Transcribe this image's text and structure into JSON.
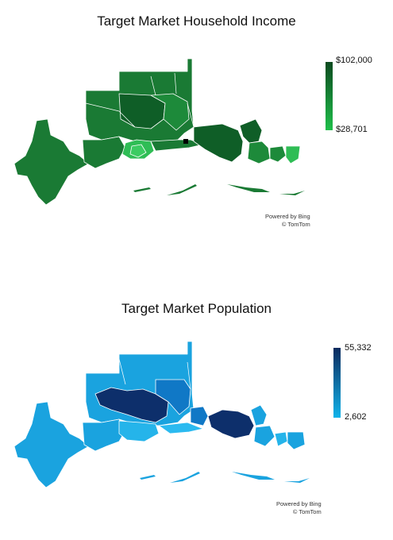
{
  "maps": [
    {
      "title": "Target Market Household Income",
      "legend": {
        "max_label": "$102,000",
        "min_label": "$28,701",
        "color_high": "#0b4a1f",
        "color_low": "#1fbf4a"
      },
      "attribution": {
        "line1": "Powered by Bing",
        "line2": "© TomTom"
      },
      "fill_colors": {
        "base": "#1a7a34",
        "dark": "#0f5e27",
        "mid": "#1d8a3a",
        "light": "#2fbd55",
        "lighter": "#3ccb62"
      }
    },
    {
      "title": "Target Market Population",
      "legend": {
        "max_label": "55,332",
        "min_label": "2,602",
        "color_high": "#0b2a5e",
        "color_low": "#0fb3ea"
      },
      "attribution": {
        "line1": "Powered by Bing",
        "line2": "© TomTom"
      },
      "fill_colors": {
        "base": "#1aa3df",
        "dark": "#0d2f6b",
        "mid": "#1078c6",
        "light": "#25b4ea",
        "lighter": "#2bbaf0"
      }
    }
  ]
}
